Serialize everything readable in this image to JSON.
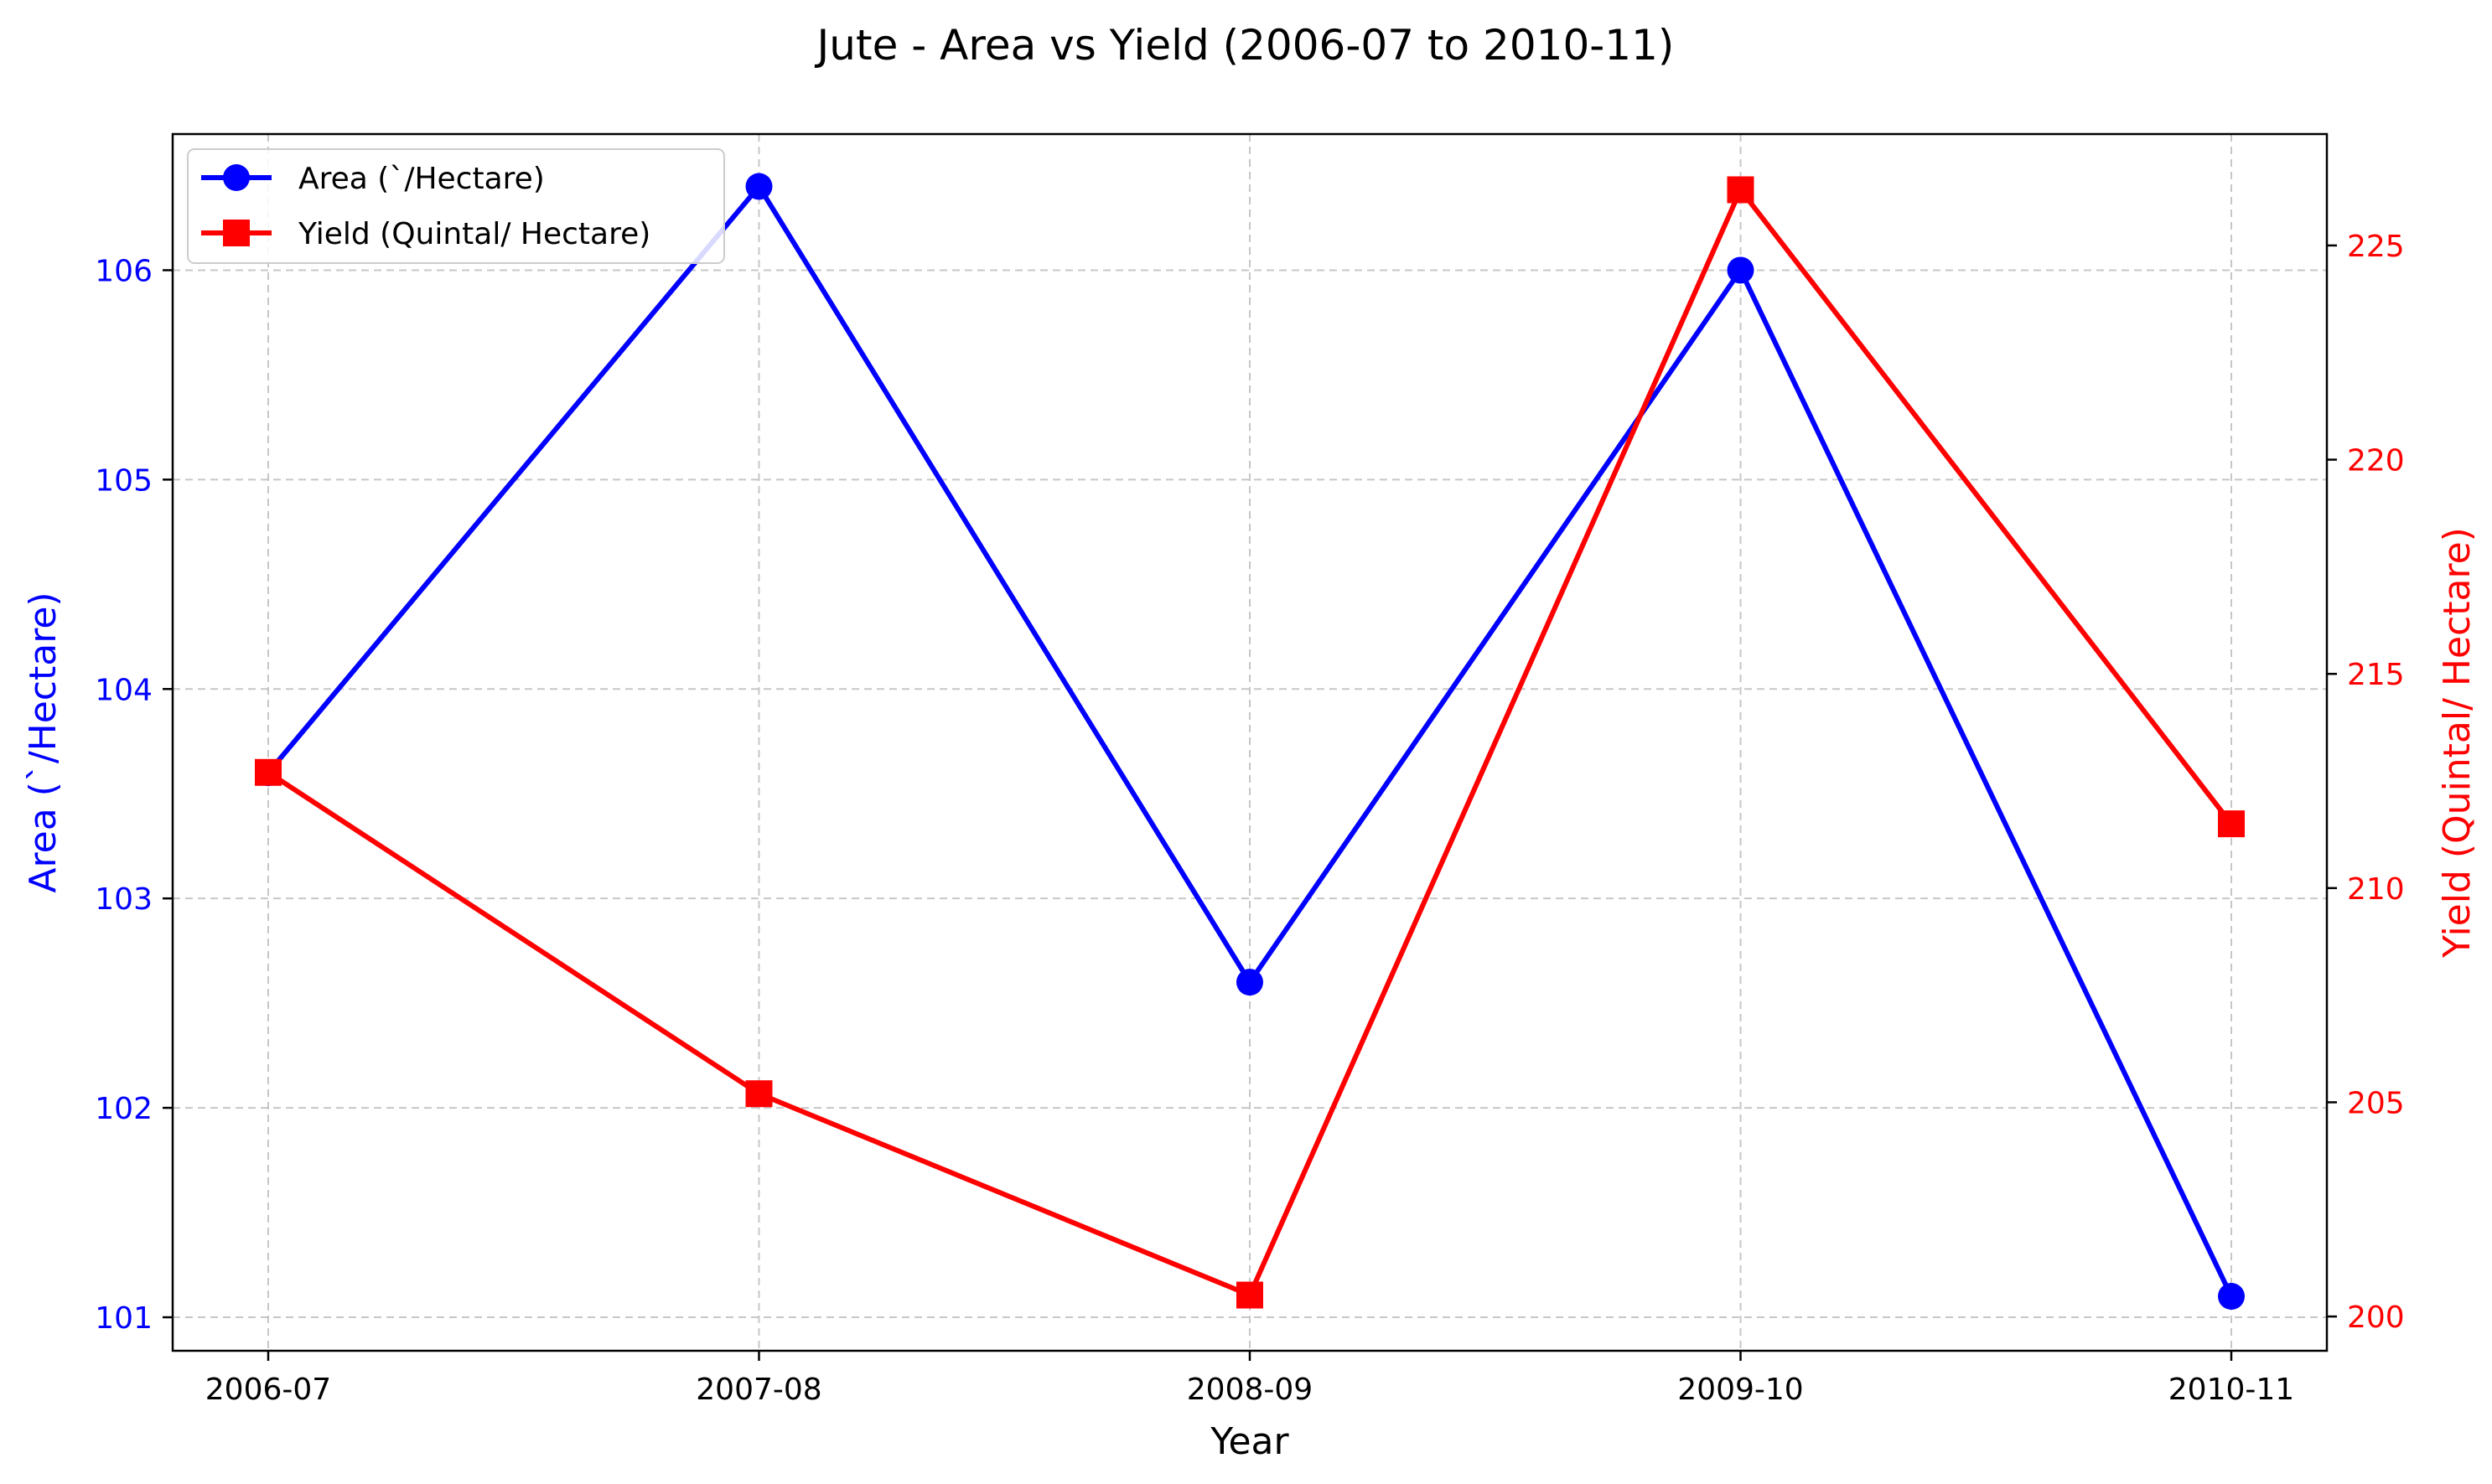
{
  "chart_data": {
    "type": "line",
    "title": "Jute - Area vs Yield (2006-07 to 2010-11)",
    "xlabel": "Year",
    "categories": [
      "2006-07",
      "2007-08",
      "2008-09",
      "2009-10",
      "2010-11"
    ],
    "y_left": {
      "label": "Area (`/Hectare)",
      "ylim": [
        100.84,
        106.65
      ],
      "ticks": [
        101,
        102,
        103,
        104,
        105,
        106
      ],
      "color": "#0000ff"
    },
    "y_right": {
      "label": "Yield (Quintal/ Hectare)",
      "ylim": [
        199.2,
        227.6
      ],
      "ticks": [
        200,
        205,
        210,
        215,
        220,
        225
      ],
      "color": "#ff0000"
    },
    "series": [
      {
        "name": "Area (`/Hectare)",
        "axis": "left",
        "color": "#0000ff",
        "marker": "circle",
        "values": [
          103.6,
          106.4,
          102.6,
          106.0,
          101.1
        ]
      },
      {
        "name": "Yield (Quintal/ Hectare)",
        "axis": "right",
        "color": "#ff0000",
        "marker": "square",
        "values": [
          212.7,
          205.2,
          200.5,
          226.3,
          211.5
        ]
      }
    ],
    "grid": true,
    "legend_position": "top-left"
  }
}
